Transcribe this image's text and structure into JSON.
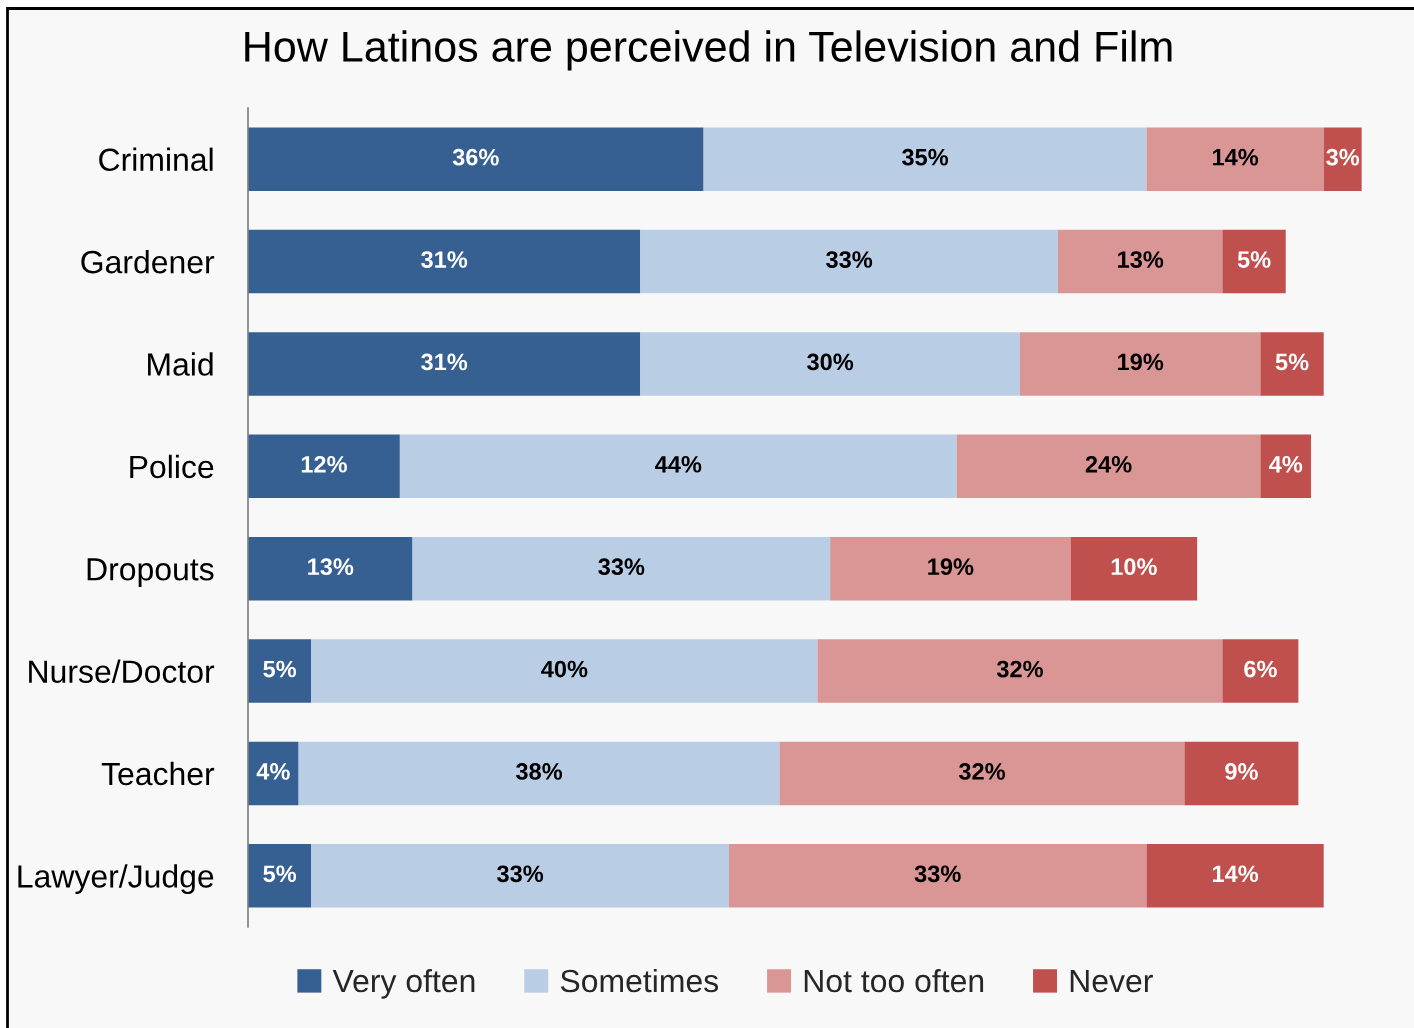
{
  "chart_data": {
    "type": "bar",
    "orientation": "horizontal",
    "stacked": true,
    "title": "How Latinos are perceived in Television and Film",
    "categories": [
      "Criminal",
      "Gardener",
      "Maid",
      "Police",
      "Dropouts",
      "Nurse/Doctor",
      "Teacher",
      "Lawyer/Judge"
    ],
    "series": [
      {
        "name": "Very often",
        "color": "#376092",
        "values": [
          36,
          31,
          31,
          12,
          13,
          5,
          4,
          5
        ],
        "value_labels": [
          "36%",
          "31%",
          "31%",
          "12%",
          "13%",
          "5%",
          "4%",
          "5%"
        ]
      },
      {
        "name": "Sometimes",
        "color": "#b9cde5",
        "values": [
          35,
          33,
          30,
          44,
          33,
          40,
          38,
          33
        ],
        "value_labels": [
          "35%",
          "33%",
          "30%",
          "44%",
          "33%",
          "40%",
          "38%",
          "33%"
        ]
      },
      {
        "name": "Not too often",
        "color": "#da9694",
        "values": [
          14,
          13,
          19,
          24,
          19,
          32,
          32,
          33
        ],
        "value_labels": [
          "14%",
          "13%",
          "19%",
          "24%",
          "19%",
          "32%",
          "32%",
          "33%"
        ]
      },
      {
        "name": "Never",
        "color": "#c0504d",
        "values": [
          3,
          5,
          5,
          4,
          10,
          6,
          9,
          14
        ],
        "value_labels": [
          "3%",
          "5%",
          "5%",
          "4%",
          "10%",
          "6%",
          "9%",
          "14%"
        ]
      }
    ],
    "legend": "bottom",
    "tick_labels": "y"
  }
}
